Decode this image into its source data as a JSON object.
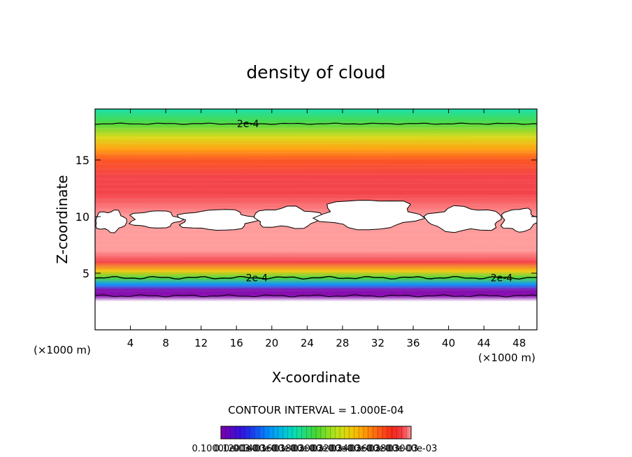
{
  "chart_data": {
    "type": "heatmap",
    "title": "density of cloud",
    "xlabel": "X-coordinate",
    "ylabel": "Z-coordinate",
    "x_unit": "(×1000 m)",
    "x_unit_right": "(×1000 m)",
    "xlim": [
      0,
      50
    ],
    "ylim": [
      0,
      19.5
    ],
    "xticks": [
      4,
      8,
      12,
      16,
      20,
      24,
      28,
      32,
      36,
      40,
      44,
      48
    ],
    "yticks": [
      5,
      10,
      15
    ],
    "contour_interval_text": "CONTOUR INTERVAL = 1.000E-04",
    "contour_labels": [
      {
        "text": "2e-4",
        "x": 17.3,
        "z": 18.2
      },
      {
        "text": "2e-4",
        "x": 18.3,
        "z": 4.6
      },
      {
        "text": "2e-4",
        "x": 46.0,
        "z": 4.6
      }
    ],
    "vertical_profile": {
      "z": [
        1.5,
        2.0,
        2.5,
        3.0,
        3.5,
        4.0,
        4.6,
        5.2,
        6.0,
        7.0,
        8.5,
        10.0,
        12.0,
        13.5,
        15.0,
        16.0,
        17.0,
        18.2,
        19.5
      ],
      "density": [
        0.0,
        2e-05,
        4e-05,
        7e-05,
        0.0001,
        0.00015,
        0.0002,
        0.00024,
        0.00029,
        0.0003,
        0.0003,
        0.0003,
        0.00029,
        0.00029,
        0.00027,
        0.00025,
        0.00023,
        0.0002,
        0.00018
      ]
    },
    "blank_regions": [
      {
        "label": "",
        "x": [
          0.0,
          3.5
        ],
        "z": [
          8.7,
          10.5
        ]
      },
      {
        "label": "",
        "x": [
          4.0,
          9.5
        ],
        "z": [
          9.0,
          10.5
        ]
      },
      {
        "label": "",
        "x": [
          9.5,
          18.0
        ],
        "z": [
          8.8,
          10.6
        ]
      },
      {
        "label": "",
        "x": [
          18.0,
          25.5
        ],
        "z": [
          9.0,
          10.8
        ]
      },
      {
        "label": "",
        "x": [
          25.5,
          36.5
        ],
        "z": [
          8.9,
          11.5
        ]
      },
      {
        "label": "",
        "x": [
          37.5,
          46.0
        ],
        "z": [
          8.7,
          10.8
        ]
      },
      {
        "label": "",
        "x": [
          46.0,
          50.0
        ],
        "z": [
          8.7,
          10.7
        ]
      }
    ],
    "colorbar": {
      "min": 0.0001,
      "max": 0.0003,
      "labels": [
        "0.10000e-03",
        "0.1200e-03",
        "0.1400e-03",
        "0.1600e-03",
        "0.1800e-03",
        "0.2000e-03",
        "0.2200e-03",
        "0.2400e-03",
        "0.2600e-03",
        "0.2800e-03",
        "0.3000e-03"
      ]
    }
  }
}
